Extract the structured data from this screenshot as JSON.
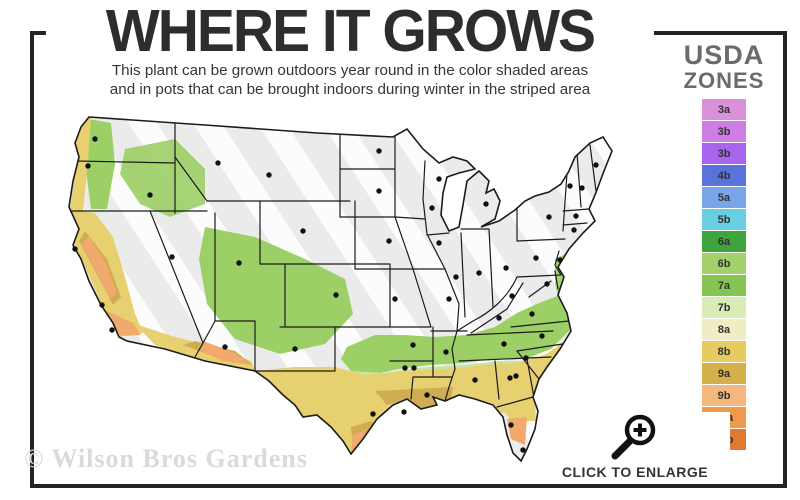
{
  "header": {
    "title": "WHERE IT GROWS",
    "subtitle_line1": "This plant can be grown outdoors year round in the color shaded areas",
    "subtitle_line2": "and in pots that can be brought indoors during winter in the striped area"
  },
  "legend": {
    "title_line1": "USDA",
    "title_line2": "ZONES",
    "zones": [
      {
        "label": "3a",
        "color": "#da90da"
      },
      {
        "label": "3b",
        "color": "#cd7de3"
      },
      {
        "label": "3b",
        "color": "#a765ee"
      },
      {
        "label": "4b",
        "color": "#5a73da"
      },
      {
        "label": "5a",
        "color": "#79a4e9"
      },
      {
        "label": "5b",
        "color": "#67cfe1"
      },
      {
        "label": "6a",
        "color": "#3ea43e"
      },
      {
        "label": "6b",
        "color": "#a2d169"
      },
      {
        "label": "7a",
        "color": "#85c653"
      },
      {
        "label": "7b",
        "color": "#d8ecb6"
      },
      {
        "label": "8a",
        "color": "#f0ecc4"
      },
      {
        "label": "8b",
        "color": "#e7cb61"
      },
      {
        "label": "9a",
        "color": "#d3b04b"
      },
      {
        "label": "9b",
        "color": "#f4b77d"
      },
      {
        "label": "10a",
        "color": "#f1994b"
      },
      {
        "label": "10b",
        "color": "#e17a31"
      }
    ]
  },
  "map": {
    "palette": {
      "gray": "#ebebeb",
      "green": "#9ccf66",
      "greenLight": "#c6e59e",
      "yellow": "#e7d070",
      "gold": "#d0ad52",
      "peach": "#f2a96e",
      "paleSouth": "#ededed",
      "border": "#1b1b1b",
      "dot": "#111111"
    },
    "city_dots": [
      [
        40,
        30
      ],
      [
        33,
        57
      ],
      [
        20,
        140
      ],
      [
        47,
        196
      ],
      [
        57,
        221
      ],
      [
        117,
        148
      ],
      [
        95,
        86
      ],
      [
        163,
        54
      ],
      [
        214,
        66
      ],
      [
        248,
        122
      ],
      [
        184,
        154
      ],
      [
        281,
        186
      ],
      [
        170,
        238
      ],
      [
        240,
        240
      ],
      [
        324,
        42
      ],
      [
        324,
        82
      ],
      [
        334,
        132
      ],
      [
        340,
        190
      ],
      [
        358,
        236
      ],
      [
        350,
        259
      ],
      [
        359,
        259
      ],
      [
        318,
        305
      ],
      [
        349,
        303
      ],
      [
        384,
        70
      ],
      [
        377,
        99
      ],
      [
        384,
        134
      ],
      [
        394,
        190
      ],
      [
        391,
        243
      ],
      [
        372,
        286
      ],
      [
        420,
        271
      ],
      [
        401,
        168
      ],
      [
        424,
        164
      ],
      [
        431,
        95
      ],
      [
        444,
        209
      ],
      [
        449,
        235
      ],
      [
        451,
        159
      ],
      [
        455,
        269
      ],
      [
        461,
        267
      ],
      [
        456,
        316
      ],
      [
        468,
        341
      ],
      [
        457,
        187
      ],
      [
        477,
        205
      ],
      [
        487,
        227
      ],
      [
        471,
        249
      ],
      [
        481,
        149
      ],
      [
        494,
        108
      ],
      [
        505,
        151
      ],
      [
        515,
        77
      ],
      [
        527,
        79
      ],
      [
        541,
        56
      ],
      [
        521,
        107
      ],
      [
        519,
        121
      ],
      [
        492,
        175
      ]
    ]
  },
  "footer": {
    "watermark": "© Wilson Bros Gardens",
    "enlarge_label": "CLICK TO ENLARGE"
  }
}
